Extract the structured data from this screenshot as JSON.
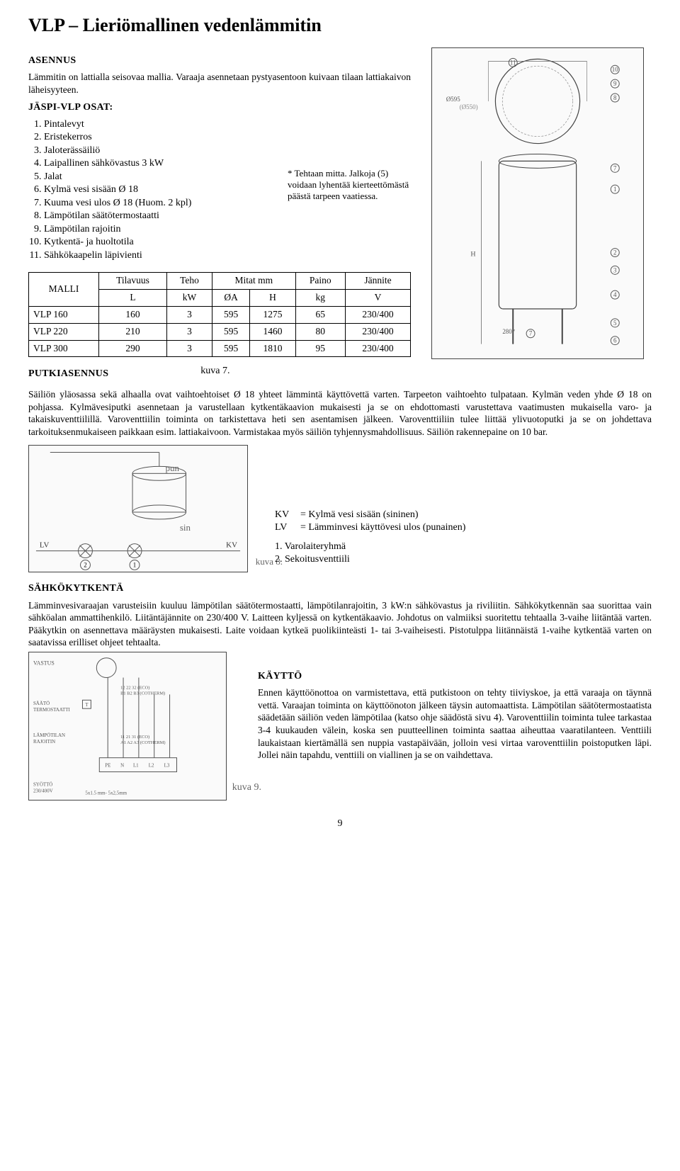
{
  "page": {
    "title": "VLP – Lieriömallinen vedenlämmitin",
    "number": "9"
  },
  "section_asennus": {
    "heading": "ASENNUS",
    "intro": "Lämmitin on lattialla seisovaa mallia. Varaaja asennetaan pystyasentoon kuivaan tilaan lattiakaivon läheisyyteen.",
    "osat_heading": "JÄSPI-VLP OSAT:",
    "parts": [
      "Pintalevyt",
      "Eristekerros",
      "Jaloterässäiliö",
      "Laipallinen sähkövastus 3 kW",
      "Jalat",
      "Kylmä vesi sisään Ø 18",
      "Kuuma vesi ulos Ø 18 (Huom. 2 kpl)",
      "Lämpötilan säätötermostaatti",
      "Lämpötilan rajoitin",
      "Kytkentä- ja huoltotila",
      "Sähkökaapelin läpivienti"
    ],
    "tehtaan_note": "* Tehtaan mitta. Jalkoja (5) voidaan lyhentää kierteettömästä päästä tarpeen vaatiessa."
  },
  "fig7": {
    "label": "kuva 7.",
    "callouts": [
      "1",
      "2",
      "3",
      "4",
      "5",
      "6",
      "7",
      "8",
      "9",
      "10",
      "11"
    ],
    "dims": [
      "Ø595",
      "(Ø550)",
      "H",
      "280*"
    ],
    "placeholder": "technical drawing (front & top view)"
  },
  "spec_table": {
    "headers": {
      "malli": "MALLI",
      "tilavuus": "Tilavuus",
      "tilavuus_unit": "L",
      "teho": "Teho",
      "teho_unit": "kW",
      "mitat": "Mitat  mm",
      "mitat_a": "ØA",
      "mitat_h": "H",
      "paino": "Paino",
      "paino_unit": "kg",
      "jannite": "Jännite",
      "jannite_unit": "V"
    },
    "rows": [
      {
        "malli": "VLP 160",
        "tilavuus": "160",
        "teho": "3",
        "oa": "595",
        "h": "1275",
        "paino": "65",
        "jannite": "230/400"
      },
      {
        "malli": "VLP 220",
        "tilavuus": "210",
        "teho": "3",
        "oa": "595",
        "h": "1460",
        "paino": "80",
        "jannite": "230/400"
      },
      {
        "malli": "VLP 300",
        "tilavuus": "290",
        "teho": "3",
        "oa": "595",
        "h": "1810",
        "paino": "95",
        "jannite": "230/400"
      }
    ]
  },
  "section_putkiasennus": {
    "heading": "PUTKIASENNUS",
    "body": "Säiliön yläosassa sekä alhaalla ovat vaihtoehtoiset Ø 18 yhteet lämmintä käyttövettä varten. Tarpeeton vaihtoehto tulpataan. Kylmän veden yhde Ø 18 on pohjassa. Kylmävesiputki asennetaan ja varustellaan kytkentäkaavion mukaisesti ja se on ehdottomasti varustettava vaatimusten mukaisella varo- ja takaiskuventtiilillä. Varoventtiilin toiminta on tarkistettava heti sen asentamisen jälkeen. Varoventtiiliin tulee liittää ylivuotoputki ja se on johdettava tarkoituksenmukaiseen paikkaan esim. lattiakaivoon. Varmistakaa myös säiliön tyhjennysmahdollisuus. Säiliön rakennepaine on 10 bar."
  },
  "fig8": {
    "label": "kuva 8.",
    "pun": "pun",
    "sin": "sin",
    "lv": "LV",
    "kv": "KV",
    "num1": "1",
    "num2": "2",
    "placeholder": "piping diagram",
    "legend": {
      "kv_label": "KV",
      "kv_text": "= Kylmä vesi sisään (sininen)",
      "lv_label": "LV",
      "lv_text": "= Lämminvesi käyttövesi ulos (punainen)",
      "item1": "1. Varolaiteryhmä",
      "item2": "2. Sekoitusventtiili"
    }
  },
  "section_sahkokytkenta": {
    "heading": "SÄHKÖKYTKENTÄ",
    "body": "Lämminvesivaraajan varusteisiin kuuluu lämpötilan säätötermostaatti, lämpötilanrajoitin, 3 kW:n sähkövastus ja riviliitin. Sähkökytkennän saa suorittaa vain sähköalan ammattihenkilö. Liitäntäjännite on 230/400 V. Laitteen kyljessä on kytkentäkaavio. Johdotus on valmiiksi suoritettu tehtaalla 3-vaihe liitäntää varten. Pääkytkin on asennettava määräysten mukaisesti. Laite voidaan kytkeä puolikiinteästi 1- tai 3-vaiheisesti. Pistotulppa liitännäistä 1-vaihe kytkentää varten on saatavissa erilliset ohjeet tehtaalta."
  },
  "fig9": {
    "label": "kuva 9.",
    "placeholder": "wiring diagram",
    "labels": {
      "vastus": "VASTUS",
      "saato": "SÄÄTÖ\nTERMOSTAATTI",
      "rajoitin": "LÄMPÖTILAN\nRAJOITIN",
      "syotto": "SYÖTTÖ\n230/400V",
      "wire": "5x1.5 mm- 5x2,5mm",
      "pins_top": "12 22 32  (ECO)\nB1 B2 B3  (COTHERM)",
      "pins_bot": "11 21 31  (ECO)\nA1 A2 A3  (COTHERM)",
      "terminal": "PE N L1 L2 L3",
      "t": "T"
    }
  },
  "section_kaytto": {
    "heading": "KÄYTTÖ",
    "body": "Ennen käyttöönottoa on varmistettava, että putkistoon on tehty tiiviyskoe, ja että varaaja on täynnä vettä. Varaajan toiminta on käyttöönoton jälkeen täysin automaattista. Lämpötilan säätötermostaatista säädetään säiliön veden lämpötilaa (katso ohje säädöstä sivu 4). Varoventtiilin toiminta tulee tarkastaa 3-4 kuukauden välein, koska sen puutteellinen toiminta saattaa aiheuttaa vaaratilanteen. Venttiili laukaistaan kiertämällä sen nuppia vastapäivään, jolloin vesi virtaa varoventtiilin poistoputken läpi. Jollei näin tapahdu, venttiili on viallinen ja se on vaihdettava."
  }
}
